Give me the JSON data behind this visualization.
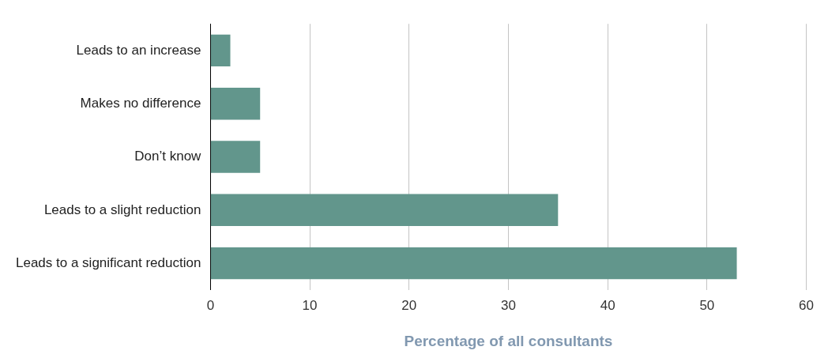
{
  "chart_data": {
    "type": "bar",
    "orientation": "horizontal",
    "xlabel": "Percentage of all consultants",
    "categories": [
      "Leads to an increase",
      "Makes no difference",
      "Don’t know",
      "Leads to a slight reduction",
      "Leads to a significant reduction"
    ],
    "values": [
      2,
      5,
      5,
      35,
      53
    ],
    "color": "#62968c",
    "xlim": [
      0,
      60
    ],
    "xticks": [
      0,
      10,
      20,
      30,
      40,
      50,
      60
    ],
    "grid": "x",
    "legend": false
  }
}
